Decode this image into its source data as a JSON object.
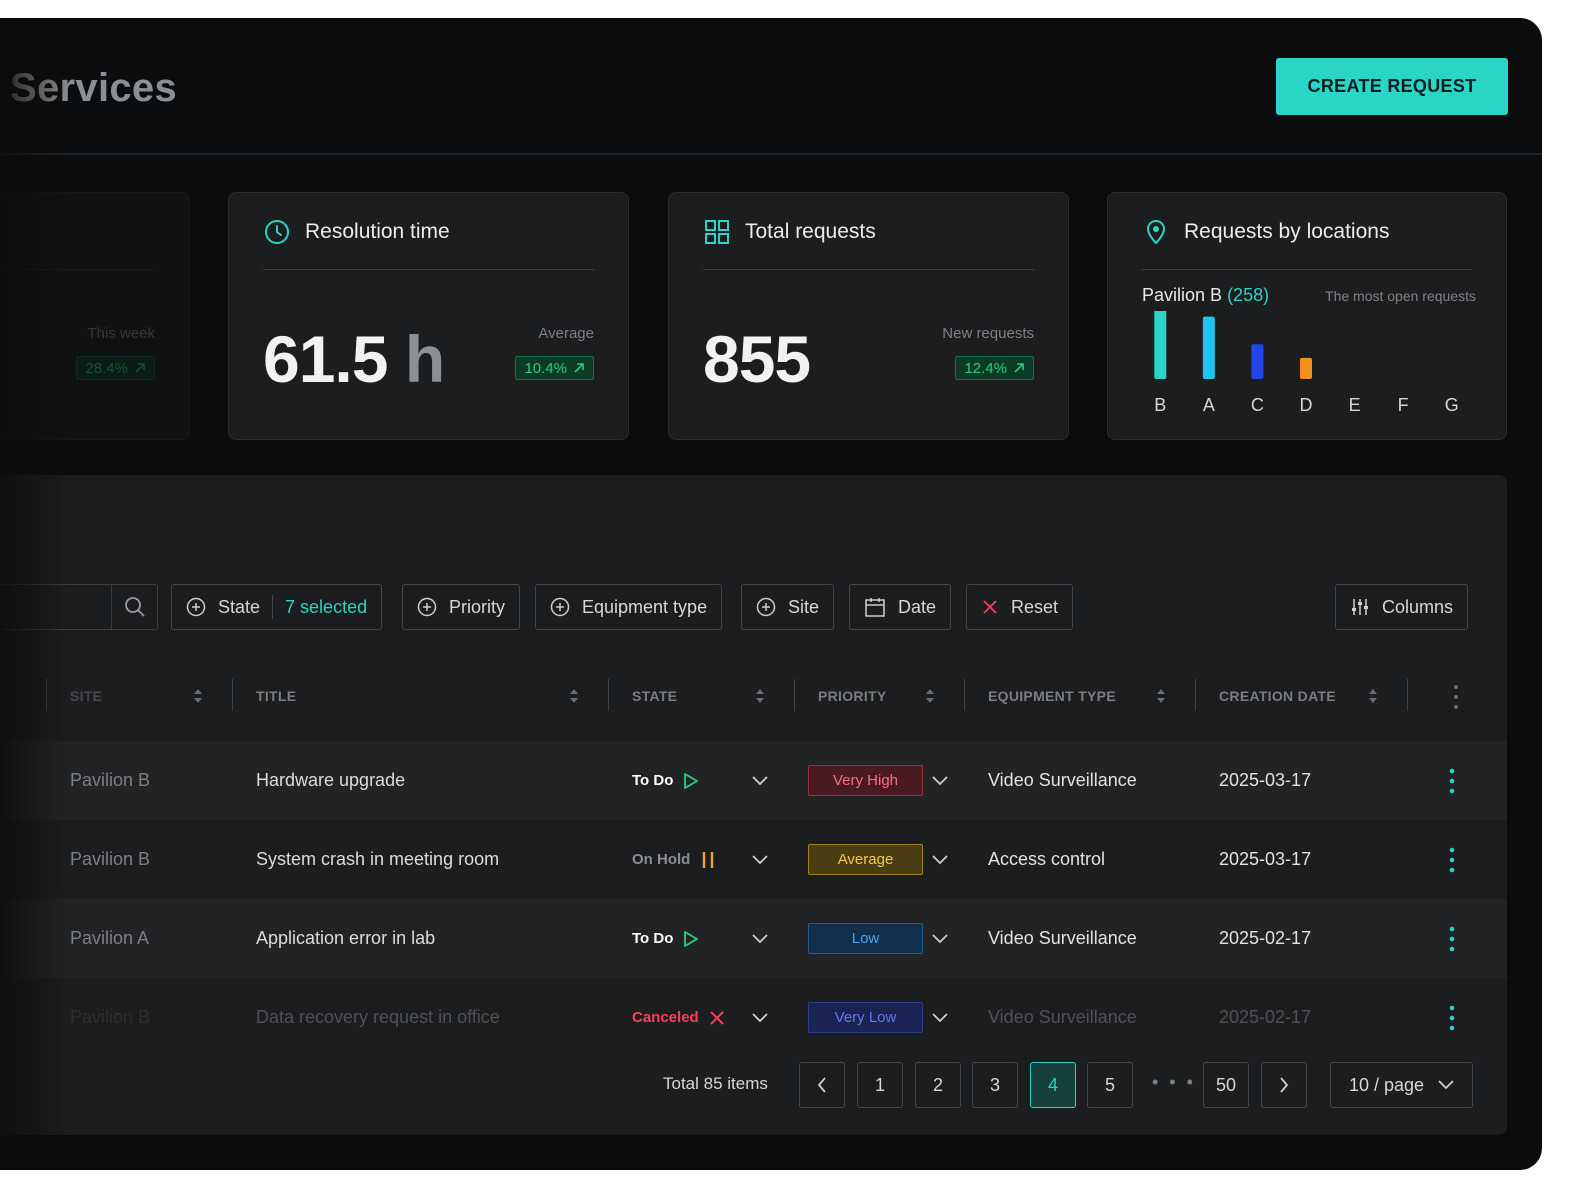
{
  "header": {
    "title": "Services",
    "create_label": "CREATE REQUEST"
  },
  "cards": {
    "partial": {
      "label": "This week",
      "badge": "28.4%"
    },
    "resolution": {
      "title": "Resolution time",
      "value": "61.5",
      "unit": "h",
      "label": "Average",
      "badge": "10.4%"
    },
    "total": {
      "title": "Total requests",
      "value": "855",
      "label": "New requests",
      "badge": "12.4%"
    },
    "locations": {
      "title": "Requests by locations",
      "top_name": "Pavilion B",
      "top_count": "(258)",
      "hint": "The most open requests"
    }
  },
  "chart_data": {
    "type": "bar",
    "categories": [
      "B",
      "A",
      "C",
      "D",
      "E",
      "F",
      "G"
    ],
    "values": [
      258,
      230,
      128,
      78,
      0,
      0,
      0
    ],
    "colors": [
      "#2ad4c6",
      "#20c4f0",
      "#2346e8",
      "#f5901e",
      "#2ad4c6",
      "#2ad4c6",
      "#2ad4c6"
    ],
    "ylim": [
      0,
      258
    ]
  },
  "filters": {
    "state_label": "State",
    "state_selected": "7 selected",
    "priority_label": "Priority",
    "equipment_label": "Equipment type",
    "site_label": "Site",
    "date_label": "Date",
    "reset_label": "Reset",
    "columns_label": "Columns"
  },
  "table": {
    "headers": {
      "site": "SITE",
      "title": "TITLE",
      "state": "STATE",
      "priority": "PRIORITY",
      "equipment": "EQUIPMENT TYPE",
      "created": "CREATION DATE"
    },
    "rows": [
      {
        "site": "Pavilion B",
        "title": "Hardware upgrade",
        "state": "To Do",
        "priority": "Very High",
        "equipment": "Video Surveillance",
        "date": "2025-03-17"
      },
      {
        "site": "Pavilion B",
        "title": "System crash in meeting room",
        "state": "On Hold",
        "priority": "Average",
        "equipment": "Access control",
        "date": "2025-03-17"
      },
      {
        "site": "Pavilion A",
        "title": "Application error in lab",
        "state": "To Do",
        "priority": "Low",
        "equipment": "Video Surveillance",
        "date": "2025-02-17"
      },
      {
        "site": "Pavilion B",
        "title": "Data recovery request in office",
        "state": "Canceled",
        "priority": "Very Low",
        "equipment": "Video Surveillance",
        "date": "2025-02-17"
      }
    ]
  },
  "pagination": {
    "total": "Total 85 items",
    "pages": [
      "1",
      "2",
      "3",
      "4",
      "5"
    ],
    "active": "4",
    "ellipsis": "• • •",
    "last": "50",
    "per_page": "10 / page"
  },
  "colors": {
    "accent": "#2ad4c6",
    "success": "#27d07a",
    "danger": "#ff3d5a",
    "warning": "#f5a623"
  }
}
